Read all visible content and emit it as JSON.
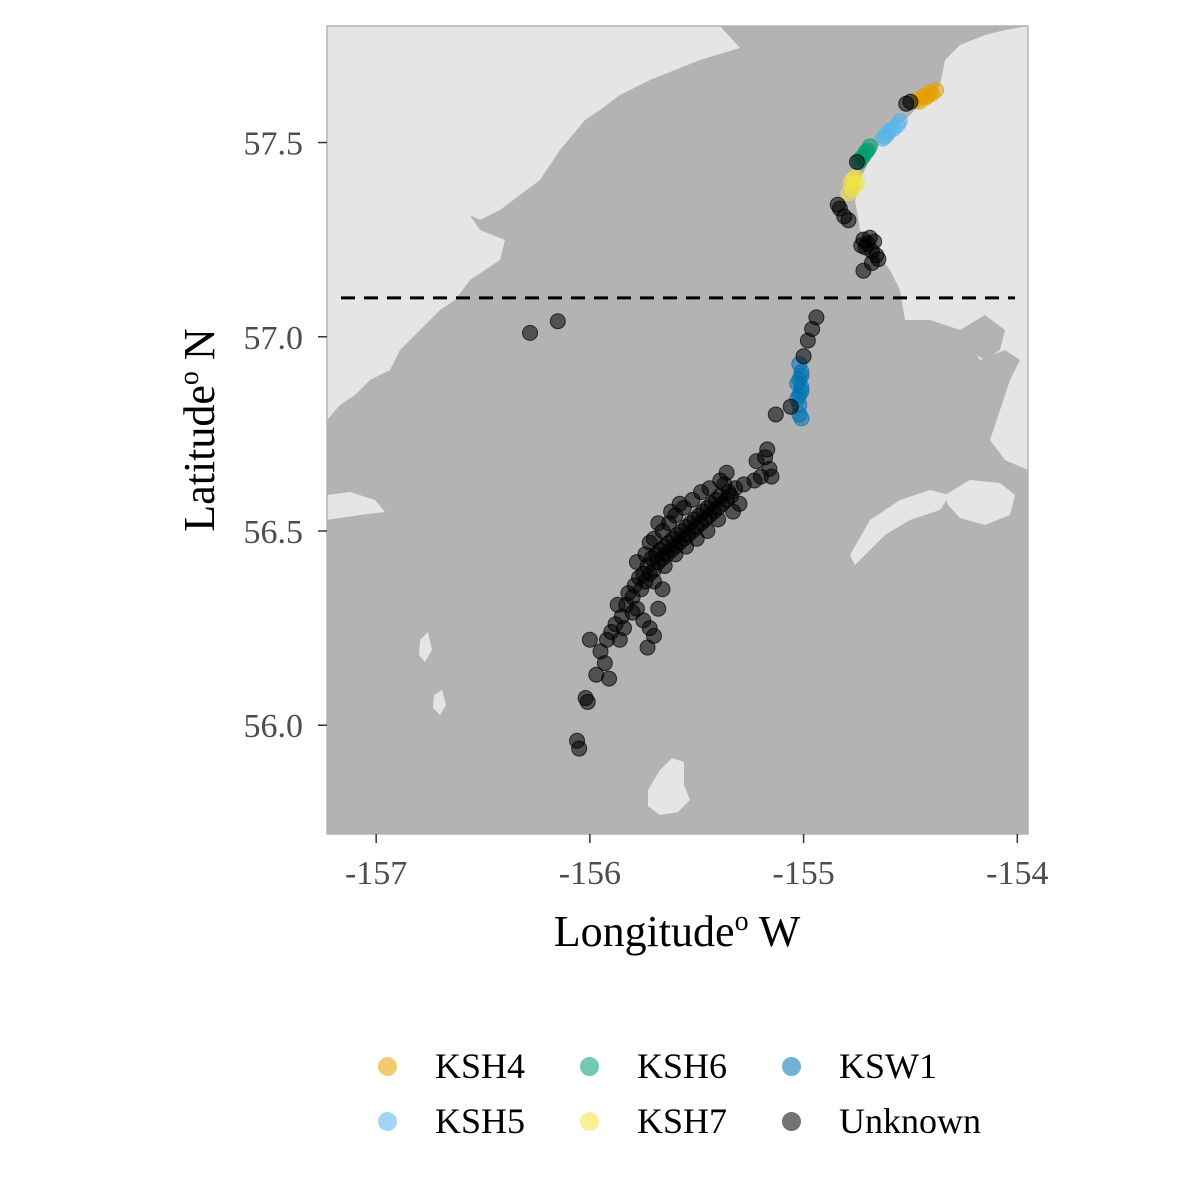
{
  "chart_data": {
    "type": "scatter",
    "title": "",
    "xlabel": "Longitude",
    "xlabel_sup": "o",
    "xlabel_suffix": " W",
    "ylabel": "Latitude",
    "ylabel_sup": "o",
    "ylabel_suffix": " N",
    "xlim": [
      -157.23,
      -153.95
    ],
    "ylim": [
      55.72,
      57.8
    ],
    "x_ticks": [
      -157,
      -156,
      -155,
      -154
    ],
    "x_tick_labels": [
      "-157",
      "-156",
      "-155",
      "-154"
    ],
    "y_ticks": [
      56.0,
      56.5,
      57.0,
      57.5
    ],
    "y_tick_labels": [
      "56.0",
      "56.5",
      "57.0",
      "57.5"
    ],
    "reference_line": {
      "latitude": 57.1,
      "style": "dashed",
      "color": "#000000"
    },
    "background": {
      "water_color": "#b3b3b3",
      "land_color": "#e5e5e5"
    },
    "grid": false,
    "legend_position": "bottom",
    "series": [
      {
        "name": "KSH4",
        "color": "#E69F00",
        "points": [
          [
            -154.47,
            57.61
          ],
          [
            -154.44,
            57.62
          ],
          [
            -154.41,
            57.63
          ],
          [
            -154.38,
            57.635
          ],
          [
            -154.46,
            57.605
          ],
          [
            -154.43,
            57.615
          ],
          [
            -154.4,
            57.625
          ],
          [
            -154.42,
            57.62
          ]
        ]
      },
      {
        "name": "KSH5",
        "color": "#56B4E9",
        "points": [
          [
            -154.55,
            57.555
          ],
          [
            -154.58,
            57.535
          ],
          [
            -154.61,
            57.52
          ],
          [
            -154.63,
            57.51
          ],
          [
            -154.56,
            57.545
          ],
          [
            -154.6,
            57.53
          ],
          [
            -154.62,
            57.515
          ]
        ]
      },
      {
        "name": "KSH6",
        "color": "#009E73",
        "points": [
          [
            -154.69,
            57.49
          ],
          [
            -154.71,
            57.475
          ],
          [
            -154.73,
            57.46
          ],
          [
            -154.74,
            57.45
          ],
          [
            -154.7,
            57.48
          ],
          [
            -154.72,
            57.465
          ]
        ]
      },
      {
        "name": "KSH7",
        "color": "#F0E442",
        "points": [
          [
            -154.76,
            57.41
          ],
          [
            -154.78,
            57.395
          ],
          [
            -154.77,
            57.38
          ],
          [
            -154.79,
            57.37
          ],
          [
            -154.75,
            57.395
          ],
          [
            -154.77,
            57.405
          ]
        ]
      },
      {
        "name": "KSW1",
        "color": "#0072B2",
        "points": [
          [
            -155.02,
            56.93
          ],
          [
            -155.01,
            56.91
          ],
          [
            -155.02,
            56.89
          ],
          [
            -155.01,
            56.87
          ],
          [
            -155.02,
            56.85
          ],
          [
            -155.03,
            56.84
          ],
          [
            -155.02,
            56.825
          ],
          [
            -155.01,
            56.86
          ],
          [
            -155.03,
            56.88
          ],
          [
            -155.01,
            56.9
          ],
          [
            -155.02,
            56.8
          ],
          [
            -155.01,
            56.79
          ]
        ]
      },
      {
        "name": "Unknown",
        "color": "#000000",
        "points": [
          [
            -156.28,
            57.01
          ],
          [
            -156.15,
            57.04
          ],
          [
            -154.94,
            57.05
          ],
          [
            -154.96,
            57.02
          ],
          [
            -154.98,
            56.99
          ],
          [
            -155.0,
            56.95
          ],
          [
            -154.83,
            57.33
          ],
          [
            -154.81,
            57.31
          ],
          [
            -154.79,
            57.3
          ],
          [
            -154.72,
            57.25
          ],
          [
            -154.7,
            57.24
          ],
          [
            -154.68,
            57.22
          ],
          [
            -154.66,
            57.21
          ],
          [
            -154.65,
            57.2
          ],
          [
            -154.71,
            57.23
          ],
          [
            -154.69,
            57.255
          ],
          [
            -154.67,
            57.245
          ],
          [
            -154.73,
            57.235
          ],
          [
            -154.68,
            57.19
          ],
          [
            -154.72,
            57.17
          ],
          [
            -154.75,
            57.45
          ],
          [
            -154.84,
            57.34
          ],
          [
            -154.52,
            57.6
          ],
          [
            -154.5,
            57.605
          ],
          [
            -155.06,
            56.82
          ],
          [
            -155.13,
            56.8
          ],
          [
            -155.17,
            56.71
          ],
          [
            -155.18,
            56.69
          ],
          [
            -155.16,
            56.66
          ],
          [
            -155.22,
            56.68
          ],
          [
            -155.2,
            56.64
          ],
          [
            -155.15,
            56.64
          ],
          [
            -155.23,
            56.63
          ],
          [
            -155.28,
            56.62
          ],
          [
            -155.32,
            56.61
          ],
          [
            -155.34,
            56.59
          ],
          [
            -155.36,
            56.58
          ],
          [
            -155.38,
            56.57
          ],
          [
            -155.4,
            56.56
          ],
          [
            -155.42,
            56.55
          ],
          [
            -155.44,
            56.54
          ],
          [
            -155.46,
            56.53
          ],
          [
            -155.48,
            56.52
          ],
          [
            -155.5,
            56.51
          ],
          [
            -155.52,
            56.5
          ],
          [
            -155.54,
            56.49
          ],
          [
            -155.56,
            56.48
          ],
          [
            -155.58,
            56.47
          ],
          [
            -155.6,
            56.46
          ],
          [
            -155.62,
            56.45
          ],
          [
            -155.64,
            56.44
          ],
          [
            -155.66,
            56.43
          ],
          [
            -155.68,
            56.42
          ],
          [
            -155.7,
            56.4
          ],
          [
            -155.72,
            56.39
          ],
          [
            -155.74,
            56.37
          ],
          [
            -155.76,
            56.35
          ],
          [
            -155.35,
            56.6
          ],
          [
            -155.37,
            56.62
          ],
          [
            -155.39,
            56.59
          ],
          [
            -155.41,
            56.58
          ],
          [
            -155.43,
            56.57
          ],
          [
            -155.45,
            56.56
          ],
          [
            -155.47,
            56.55
          ],
          [
            -155.49,
            56.54
          ],
          [
            -155.51,
            56.53
          ],
          [
            -155.53,
            56.52
          ],
          [
            -155.55,
            56.51
          ],
          [
            -155.57,
            56.5
          ],
          [
            -155.59,
            56.49
          ],
          [
            -155.61,
            56.48
          ],
          [
            -155.63,
            56.47
          ],
          [
            -155.65,
            56.46
          ],
          [
            -155.67,
            56.45
          ],
          [
            -155.69,
            56.44
          ],
          [
            -155.71,
            56.43
          ],
          [
            -155.73,
            56.41
          ],
          [
            -155.75,
            56.39
          ],
          [
            -155.77,
            56.38
          ],
          [
            -155.45,
            56.5
          ],
          [
            -155.5,
            56.48
          ],
          [
            -155.55,
            56.46
          ],
          [
            -155.6,
            56.44
          ],
          [
            -155.65,
            56.41
          ],
          [
            -155.7,
            56.37
          ],
          [
            -155.4,
            56.53
          ],
          [
            -155.33,
            56.55
          ],
          [
            -155.58,
            56.57
          ],
          [
            -155.62,
            56.55
          ],
          [
            -155.68,
            56.52
          ],
          [
            -155.72,
            56.47
          ],
          [
            -155.78,
            56.42
          ],
          [
            -155.8,
            56.33
          ],
          [
            -155.83,
            56.31
          ],
          [
            -155.85,
            56.28
          ],
          [
            -155.88,
            56.26
          ],
          [
            -155.9,
            56.24
          ],
          [
            -155.86,
            56.22
          ],
          [
            -155.84,
            56.25
          ],
          [
            -155.8,
            56.29
          ],
          [
            -155.75,
            56.27
          ],
          [
            -155.72,
            56.25
          ],
          [
            -155.7,
            56.23
          ],
          [
            -155.73,
            56.2
          ],
          [
            -155.68,
            56.3
          ],
          [
            -155.66,
            56.35
          ],
          [
            -155.78,
            56.3
          ],
          [
            -155.92,
            56.22
          ],
          [
            -155.95,
            56.19
          ],
          [
            -155.93,
            56.16
          ],
          [
            -155.91,
            56.12
          ],
          [
            -156.0,
            56.22
          ],
          [
            -156.01,
            56.06
          ],
          [
            -155.97,
            56.13
          ],
          [
            -156.02,
            56.07
          ],
          [
            -156.06,
            55.96
          ],
          [
            -156.05,
            55.94
          ],
          [
            -155.87,
            56.31
          ],
          [
            -155.82,
            56.34
          ],
          [
            -155.79,
            56.36
          ],
          [
            -155.74,
            56.44
          ],
          [
            -155.7,
            56.48
          ],
          [
            -155.66,
            56.5
          ],
          [
            -155.63,
            56.52
          ],
          [
            -155.6,
            56.54
          ],
          [
            -155.56,
            56.56
          ],
          [
            -155.52,
            56.58
          ],
          [
            -155.48,
            56.6
          ],
          [
            -155.44,
            56.61
          ],
          [
            -155.39,
            56.63
          ],
          [
            -155.36,
            56.65
          ],
          [
            -155.3,
            56.57
          ]
        ]
      }
    ]
  }
}
